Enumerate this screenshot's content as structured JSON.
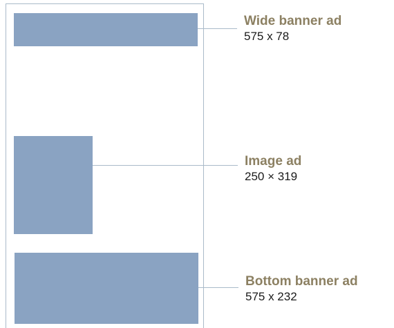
{
  "ads": [
    {
      "name": "Wide banner ad",
      "size": "575 x 78"
    },
    {
      "name": "Image ad",
      "size": "250 × 319"
    },
    {
      "name": "Bottom banner ad",
      "size": "575 x 232"
    }
  ],
  "colors": {
    "ad_fill": "#8aa3c2",
    "frame_line": "#a9bac9",
    "title_text": "#8c8062",
    "size_text": "#1a1a1a"
  }
}
